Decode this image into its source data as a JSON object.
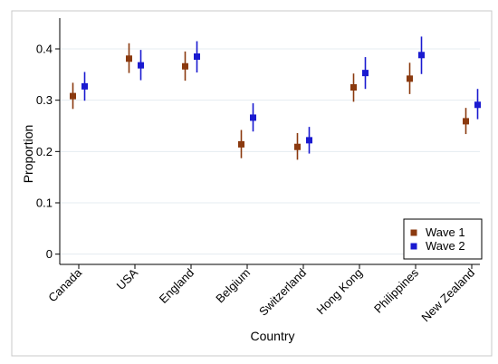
{
  "chart_data": {
    "type": "scatter",
    "xlabel": "Country",
    "ylabel": "Proportion",
    "categories": [
      "Canada",
      "USA",
      "England",
      "Belgium",
      "Switzerland",
      "Hong Kong",
      "Philippines",
      "New Zealand"
    ],
    "ylim": [
      -0.02,
      0.46
    ],
    "yticks": [
      0,
      0.1,
      0.2,
      0.3,
      0.4
    ],
    "ytick_labels": [
      "0",
      "0.1",
      "0.2",
      "0.3",
      "0.4"
    ],
    "grid": true,
    "legend_position": "bottom-right",
    "series": [
      {
        "name": "Wave 1",
        "color": "#8B3A0F",
        "values": [
          0.308,
          0.381,
          0.366,
          0.214,
          0.209,
          0.325,
          0.342,
          0.259
        ],
        "ci_low": [
          0.283,
          0.353,
          0.338,
          0.187,
          0.184,
          0.297,
          0.312,
          0.234
        ],
        "ci_high": [
          0.334,
          0.411,
          0.395,
          0.242,
          0.236,
          0.352,
          0.373,
          0.285
        ]
      },
      {
        "name": "Wave 2",
        "color": "#1A1AD0",
        "values": [
          0.327,
          0.368,
          0.385,
          0.266,
          0.222,
          0.353,
          0.388,
          0.291
        ],
        "ci_low": [
          0.299,
          0.339,
          0.354,
          0.239,
          0.196,
          0.322,
          0.351,
          0.263
        ],
        "ci_high": [
          0.355,
          0.398,
          0.415,
          0.294,
          0.248,
          0.384,
          0.424,
          0.322
        ]
      }
    ]
  }
}
